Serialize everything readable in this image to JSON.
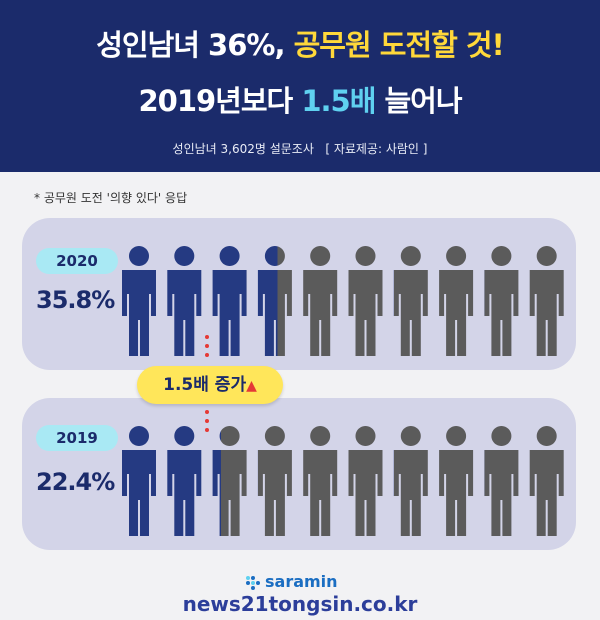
{
  "header": {
    "line1_prefix": "성인남녀 36%, ",
    "line1_highlight": "공무원 도전할 것!",
    "line2_prefix": "2019년보다 ",
    "line2_highlight": "1.5배",
    "line2_suffix": " 늘어나",
    "subtitle": "성인남녀 3,602명 설문조사   [ 자료제공: 사람인 ]"
  },
  "note": "* 공무원 도전 '의향 있다' 응답",
  "rows": [
    {
      "year": "2020",
      "percent": "35.8%",
      "share": 0.358
    },
    {
      "year": "2019",
      "percent": "22.4%",
      "share": 0.224
    }
  ],
  "increase_badge": {
    "label": "1.5배 증가",
    "arrow": "▲"
  },
  "colors": {
    "navy": "#1b2b6b",
    "blue_person": "#253a82",
    "gray_person": "#5b5b5b",
    "panel": "#d3d4e8",
    "yellow": "#ffd83a",
    "cyan": "#5fd1f0"
  },
  "logo": "saramin",
  "watermark": "news21tongsin.co.kr"
}
